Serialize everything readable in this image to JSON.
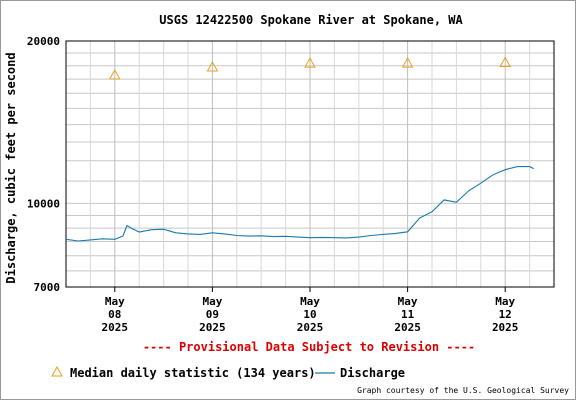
{
  "chart_data": {
    "type": "line",
    "title": "USGS 12422500 Spokane River at Spokane, WA",
    "ylabel": "Discharge, cubic feet per second",
    "ylim": [
      7000,
      20000
    ],
    "y_scale": "log",
    "y_ticks": [
      {
        "value": 20000,
        "label": "20000"
      },
      {
        "value": 10000,
        "label": "10000"
      },
      {
        "value": 7000,
        "label": "7000"
      }
    ],
    "xlim": [
      "2025-05-07T12:00",
      "2025-05-12T12:00"
    ],
    "x_ticks": [
      {
        "at": "2025-05-08T00:00",
        "lines": [
          "May",
          "08",
          "2025"
        ]
      },
      {
        "at": "2025-05-09T00:00",
        "lines": [
          "May",
          "09",
          "2025"
        ]
      },
      {
        "at": "2025-05-10T00:00",
        "lines": [
          "May",
          "10",
          "2025"
        ]
      },
      {
        "at": "2025-05-11T00:00",
        "lines": [
          "May",
          "11",
          "2025"
        ]
      },
      {
        "at": "2025-05-12T00:00",
        "lines": [
          "May",
          "12",
          "2025"
        ]
      }
    ],
    "grid": true,
    "series": [
      {
        "name": "Discharge",
        "kind": "line",
        "color": "#1a7aa8",
        "points": [
          [
            "2025-05-07T12:00",
            8580
          ],
          [
            "2025-05-07T15:00",
            8520
          ],
          [
            "2025-05-07T18:00",
            8560
          ],
          [
            "2025-05-07T21:00",
            8600
          ],
          [
            "2025-05-08T00:00",
            8580
          ],
          [
            "2025-05-08T02:00",
            8700
          ],
          [
            "2025-05-08T03:00",
            9100
          ],
          [
            "2025-05-08T04:00",
            9000
          ],
          [
            "2025-05-08T06:00",
            8850
          ],
          [
            "2025-05-08T09:00",
            8940
          ],
          [
            "2025-05-08T12:00",
            8960
          ],
          [
            "2025-05-08T15:00",
            8820
          ],
          [
            "2025-05-08T18:00",
            8780
          ],
          [
            "2025-05-08T21:00",
            8760
          ],
          [
            "2025-05-09T00:00",
            8820
          ],
          [
            "2025-05-09T03:00",
            8780
          ],
          [
            "2025-05-09T06:00",
            8720
          ],
          [
            "2025-05-09T09:00",
            8700
          ],
          [
            "2025-05-09T12:00",
            8710
          ],
          [
            "2025-05-09T15:00",
            8680
          ],
          [
            "2025-05-09T18:00",
            8690
          ],
          [
            "2025-05-09T21:00",
            8660
          ],
          [
            "2025-05-10T00:00",
            8640
          ],
          [
            "2025-05-10T03:00",
            8650
          ],
          [
            "2025-05-10T06:00",
            8640
          ],
          [
            "2025-05-10T09:00",
            8630
          ],
          [
            "2025-05-10T12:00",
            8660
          ],
          [
            "2025-05-10T15:00",
            8720
          ],
          [
            "2025-05-10T18:00",
            8760
          ],
          [
            "2025-05-10T21:00",
            8800
          ],
          [
            "2025-05-11T00:00",
            8860
          ],
          [
            "2025-05-11T03:00",
            9400
          ],
          [
            "2025-05-11T06:00",
            9650
          ],
          [
            "2025-05-11T09:00",
            10150
          ],
          [
            "2025-05-11T12:00",
            10050
          ],
          [
            "2025-05-11T15:00",
            10550
          ],
          [
            "2025-05-11T18:00",
            10900
          ],
          [
            "2025-05-11T21:00",
            11300
          ],
          [
            "2025-05-12T00:00",
            11550
          ],
          [
            "2025-05-12T03:00",
            11700
          ],
          [
            "2025-05-12T06:00",
            11700
          ],
          [
            "2025-05-12T07:00",
            11600
          ]
        ]
      },
      {
        "name": "Median daily statistic (134 years)",
        "kind": "marker",
        "marker": "triangle",
        "color": "#e8a020",
        "points": [
          [
            "2025-05-08T00:00",
            17300
          ],
          [
            "2025-05-09T00:00",
            17900
          ],
          [
            "2025-05-10T00:00",
            18200
          ],
          [
            "2025-05-11T00:00",
            18200
          ],
          [
            "2025-05-12T00:00",
            18250
          ]
        ]
      }
    ],
    "annotation": "---- Provisional Data Subject to Revision ----",
    "legend_position": "bottom-left",
    "credit": "Graph courtesy of the U.S. Geological Survey"
  }
}
